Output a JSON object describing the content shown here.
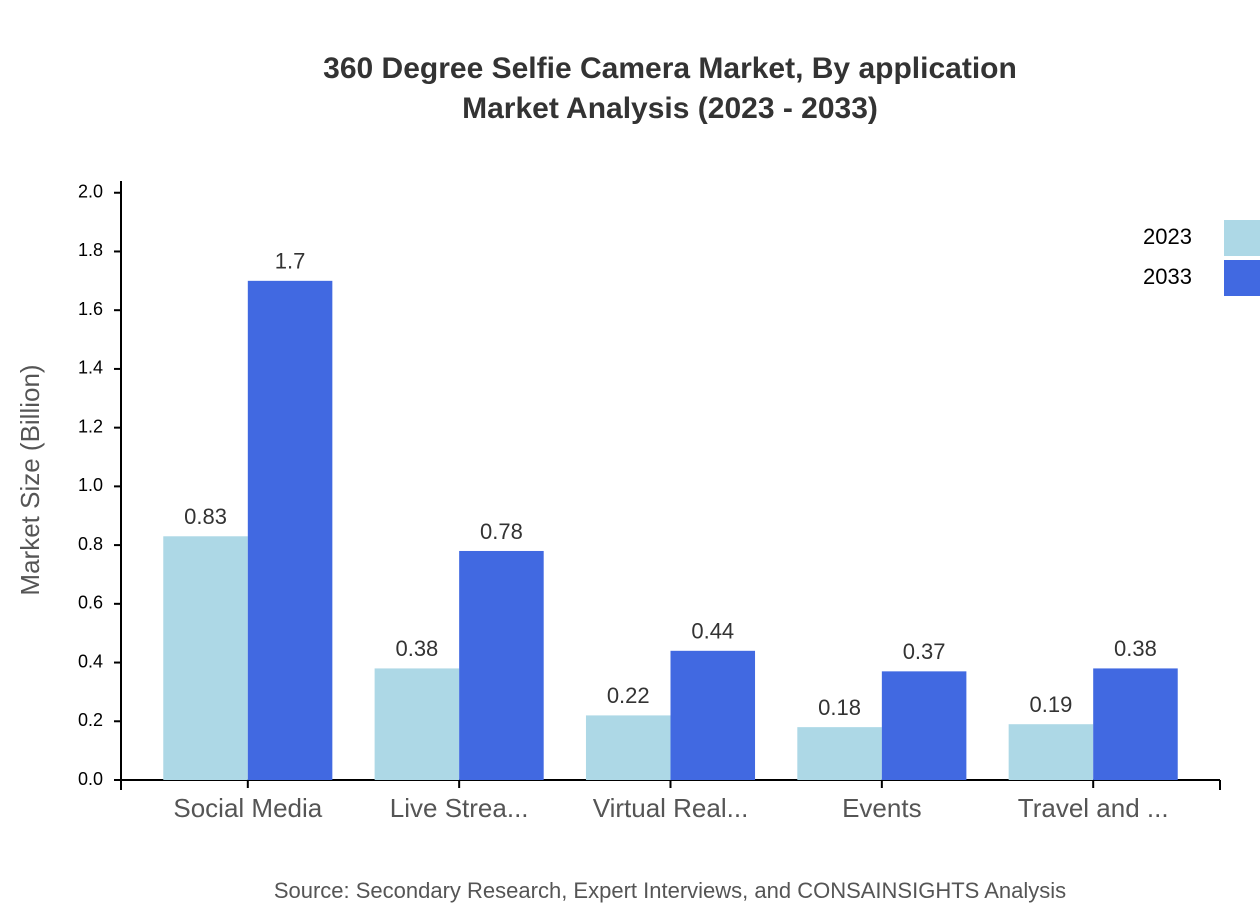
{
  "chart_data": {
    "type": "bar",
    "title": "360 Degree Selfie Camera Market, By application",
    "subtitle": "Market Analysis (2023 - 2033)",
    "y_label": "Market Size (Billion)",
    "source": "Source: Secondary Research, Expert Interviews, and CONSAINSIGHTS Analysis",
    "categories": [
      "Social Media",
      "Live Strea...",
      "Virtual Real...",
      "Events",
      "Travel and ..."
    ],
    "series": [
      {
        "name": "2023",
        "color": "#add8e6",
        "values": [
          0.83,
          0.38,
          0.22,
          0.18,
          0.19
        ]
      },
      {
        "name": "2033",
        "color": "#4169e1",
        "values": [
          1.7,
          0.78,
          0.44,
          0.37,
          0.38
        ]
      }
    ],
    "ylim": [
      0,
      2.04
    ],
    "yticks": [
      {
        "value": 0,
        "label": "0.0"
      },
      0.2,
      0.4,
      0.6,
      0.8,
      {
        "value": 1,
        "label": "1.0"
      },
      1.2,
      1.4,
      1.6,
      1.8,
      {
        "value": 2,
        "label": "2.0"
      }
    ],
    "legend": "top-right"
  }
}
